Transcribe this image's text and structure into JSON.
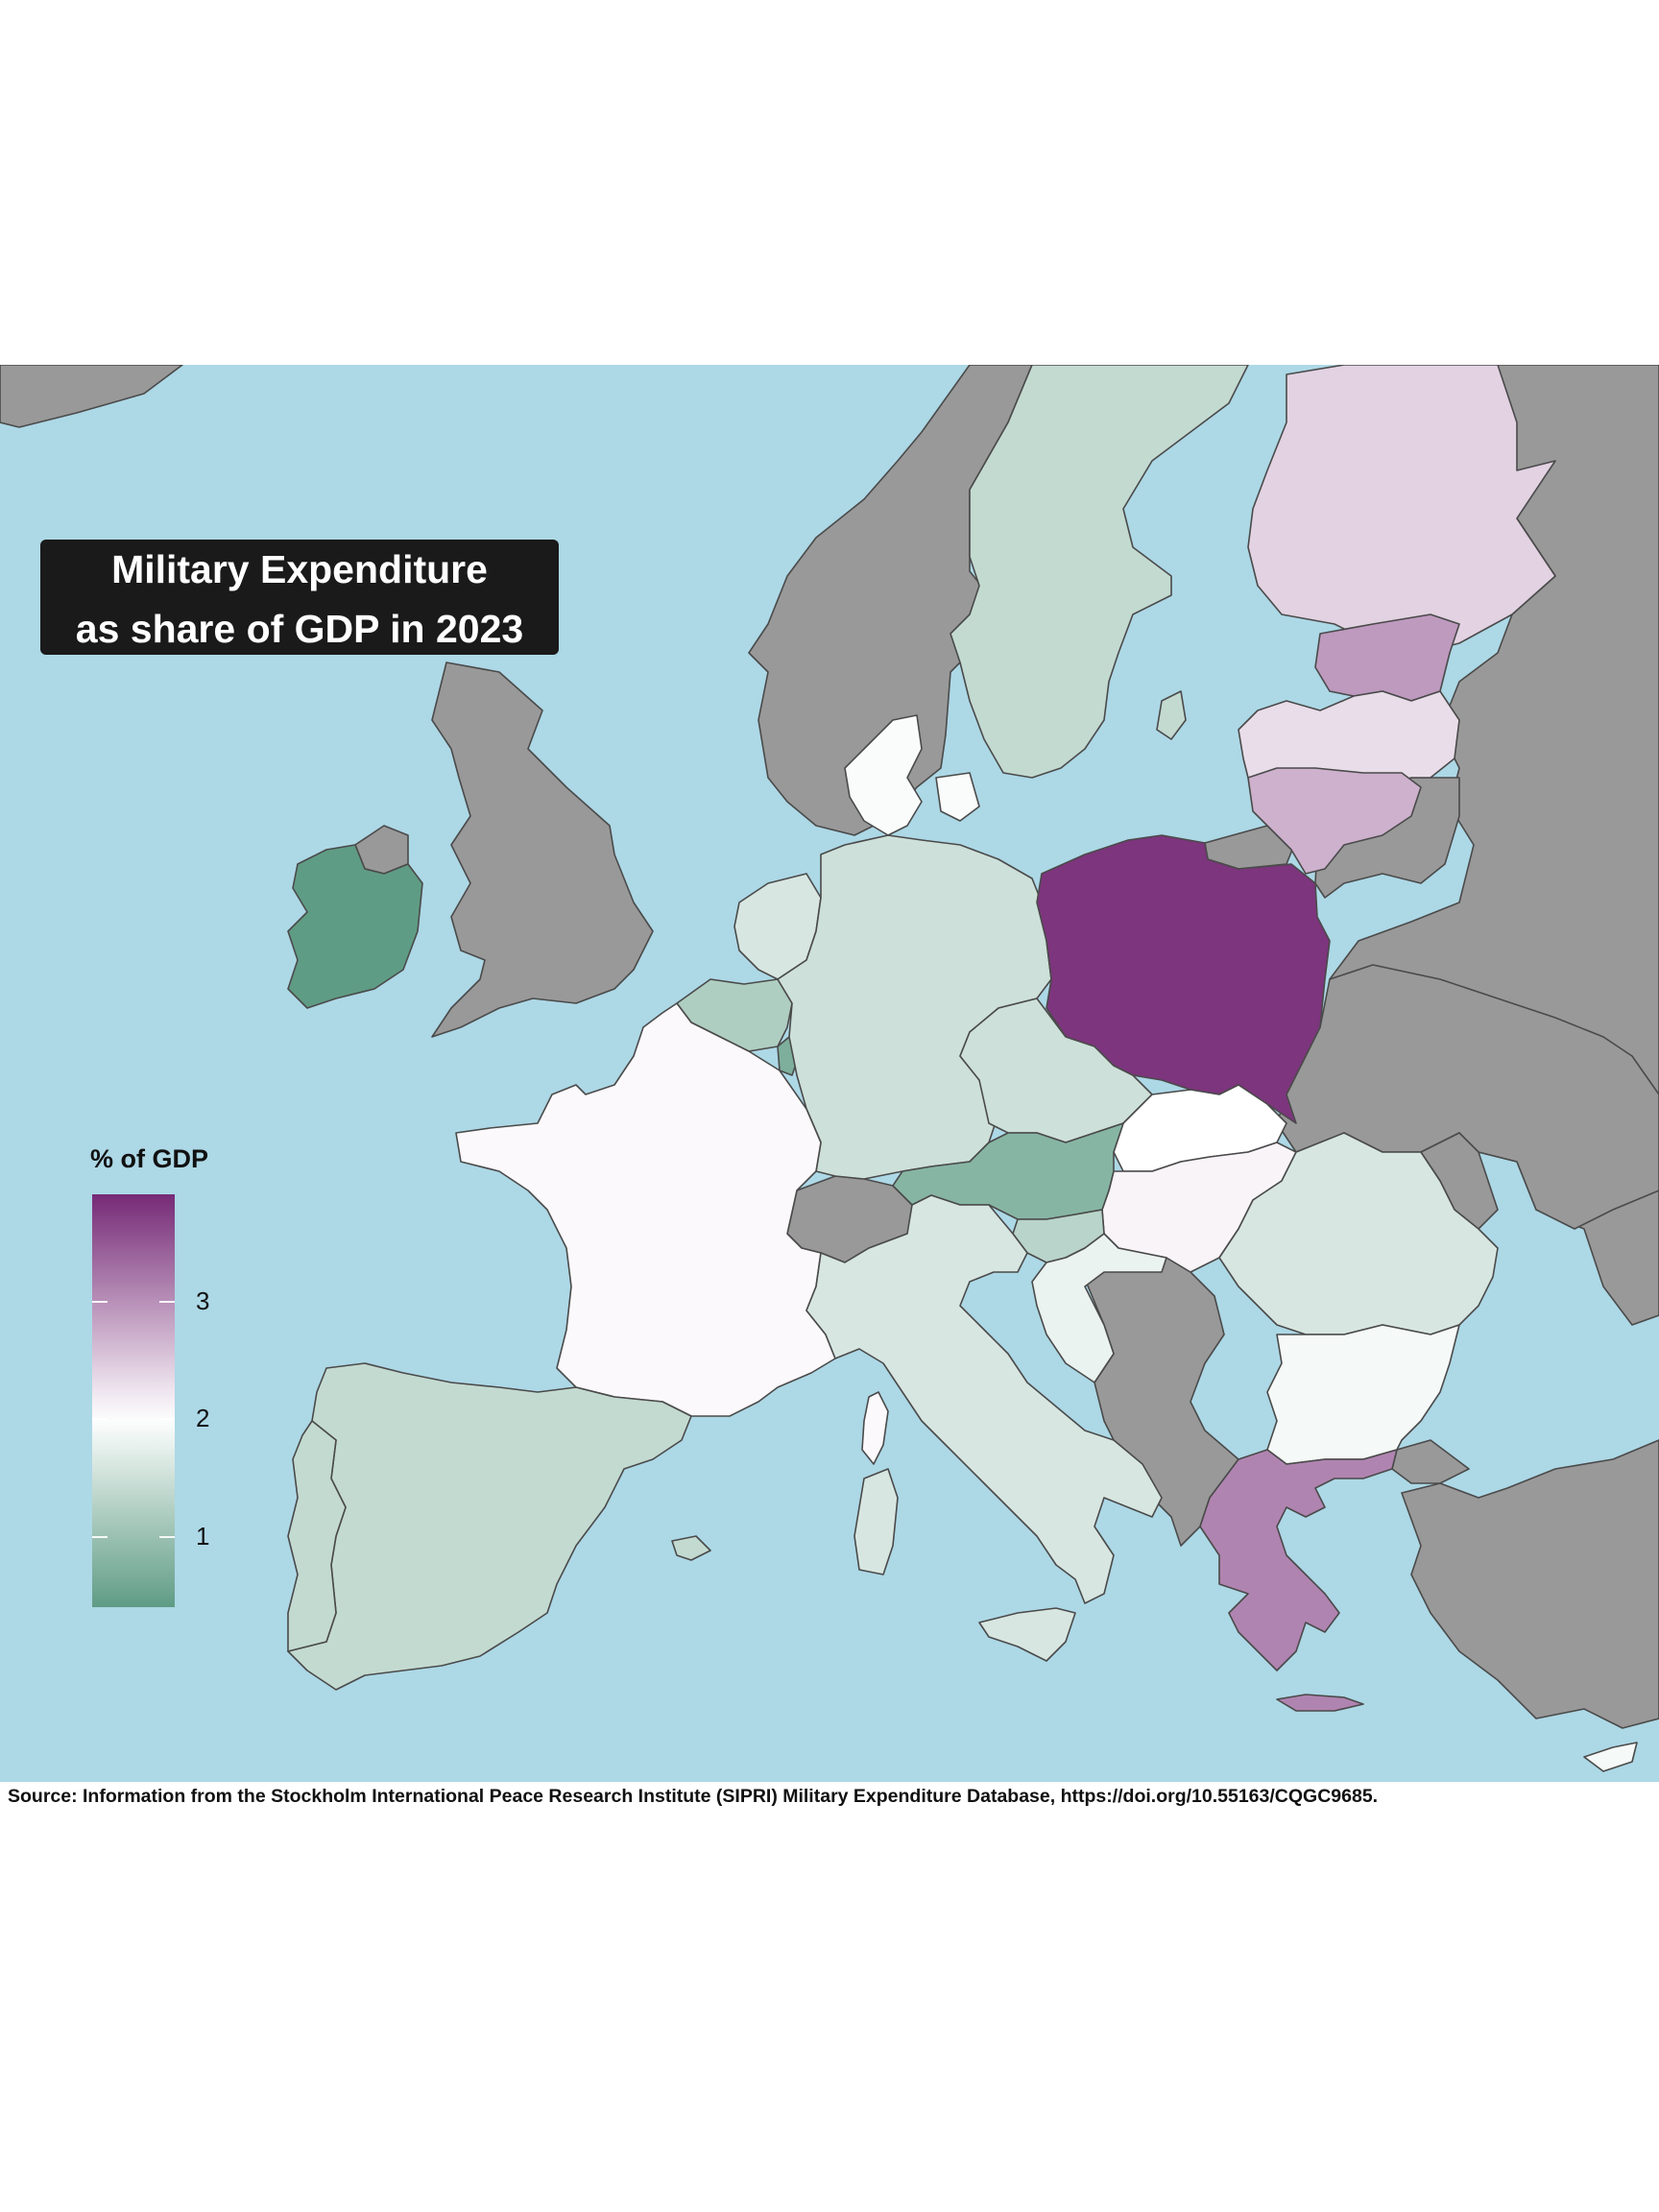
{
  "title": {
    "line1": "Military Expenditure",
    "line2": "as share of GDP in 2023"
  },
  "legend": {
    "title": "% of GDP",
    "ticks": [
      "3",
      "2",
      "1"
    ],
    "range": [
      0.4,
      3.9
    ],
    "colors": {
      "low": "#5f9c85",
      "mid": "#ffffff",
      "high": "#762a76"
    }
  },
  "colors": {
    "sea": "#add8e6",
    "no_data": "#999999",
    "border": "#4a4a4a"
  },
  "source": "Source: Information from the Stockholm International Peace Research Institute (SIPRI) Military Expenditure Database, https://doi.org/10.55163/CQGC9685.",
  "chart_data": {
    "type": "choropleth",
    "variable": "% of GDP",
    "regions": [
      {
        "id": "poland",
        "value": 3.8
      },
      {
        "id": "greece",
        "value": 3.1
      },
      {
        "id": "estonia",
        "value": 2.9
      },
      {
        "id": "lithuania",
        "value": 2.7
      },
      {
        "id": "finland",
        "value": 2.4
      },
      {
        "id": "latvia",
        "value": 2.3
      },
      {
        "id": "hungary",
        "value": 2.1
      },
      {
        "id": "france",
        "value": 2.05
      },
      {
        "id": "slovakia",
        "value": 2.0
      },
      {
        "id": "denmark",
        "value": 1.95
      },
      {
        "id": "bulgaria",
        "value": 1.9
      },
      {
        "id": "romania",
        "value": 1.6
      },
      {
        "id": "germany",
        "value": 1.5
      },
      {
        "id": "netherlands",
        "value": 1.6
      },
      {
        "id": "italy",
        "value": 1.6
      },
      {
        "id": "czechia",
        "value": 1.5
      },
      {
        "id": "sweden",
        "value": 1.4
      },
      {
        "id": "spain",
        "value": 1.4
      },
      {
        "id": "portugal",
        "value": 1.4
      },
      {
        "id": "slovenia",
        "value": 1.3
      },
      {
        "id": "croatia",
        "value": 1.8
      },
      {
        "id": "belgium",
        "value": 1.2
      },
      {
        "id": "austria",
        "value": 0.8
      },
      {
        "id": "luxembourg",
        "value": 0.7
      },
      {
        "id": "ireland",
        "value": 0.2
      },
      {
        "id": "corsica",
        "value": 2.05
      },
      {
        "id": "sardinia",
        "value": 1.6
      },
      {
        "id": "sicily",
        "value": 1.6
      },
      {
        "id": "crete",
        "value": 3.1
      },
      {
        "id": "cyprus",
        "value": 1.9
      }
    ],
    "no_data": [
      "united-kingdom",
      "norway",
      "switzerland",
      "russia",
      "belarus",
      "ukraine",
      "serbia",
      "bosnia",
      "montenegro",
      "albania",
      "north-macedonia",
      "moldova",
      "turkey",
      "kaliningrad",
      "iceland"
    ]
  }
}
